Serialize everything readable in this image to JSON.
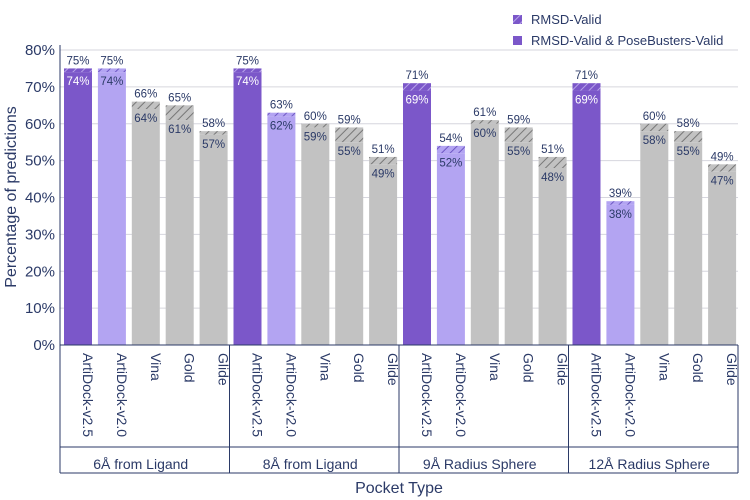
{
  "chart_data": {
    "type": "bar",
    "ylabel": "Percentage of predictions",
    "xlabel": "Pocket Type",
    "ylim": [
      0,
      80
    ],
    "yticks": [
      0,
      10,
      20,
      30,
      40,
      50,
      60,
      70,
      80
    ],
    "ytick_labels": [
      "0%",
      "10%",
      "20%",
      "30%",
      "40%",
      "50%",
      "60%",
      "70%",
      "80%"
    ],
    "legend": [
      {
        "name": "RMSD-Valid",
        "style": "hatched"
      },
      {
        "name": "RMSD-Valid & PoseBusters-Valid",
        "style": "solid"
      }
    ],
    "legend_position": "top-right",
    "methods": [
      "ArtiDock-v2.5",
      "ArtiDock-v2.0",
      "Vina",
      "Gold",
      "Glide"
    ],
    "colors": {
      "ArtiDock-v2.5": "#7b57c9",
      "ArtiDock-v2.0": "#b3a4f2",
      "Vina": "#c2c2c2",
      "Gold": "#c2c2c2",
      "Glide": "#c2c2c2"
    },
    "groups": [
      {
        "name": "6Å from Ligand",
        "rmsd_valid": [
          75,
          75,
          66,
          65,
          58
        ],
        "pb_valid": [
          74,
          74,
          64,
          61,
          57
        ],
        "rmsd_labels": [
          "75%",
          "75%",
          "66%",
          "65%",
          "58%"
        ],
        "pb_labels": [
          "74%",
          "74%",
          "64%",
          "61%",
          "57%"
        ]
      },
      {
        "name": "8Å from Ligand",
        "rmsd_valid": [
          75,
          63,
          60,
          59,
          51
        ],
        "pb_valid": [
          74,
          62,
          59,
          55,
          49
        ],
        "rmsd_labels": [
          "75%",
          "63%",
          "60%",
          "59%",
          "51%"
        ],
        "pb_labels": [
          "74%",
          "62%",
          "59%",
          "55%",
          "49%"
        ]
      },
      {
        "name": "9Å Radius Sphere",
        "rmsd_valid": [
          71,
          54,
          61,
          59,
          51
        ],
        "pb_valid": [
          69,
          52,
          60,
          55,
          48
        ],
        "rmsd_labels": [
          "71%",
          "54%",
          "61%",
          "59%",
          "51%"
        ],
        "pb_labels": [
          "69%",
          "52%",
          "60%",
          "55%",
          "48%"
        ]
      },
      {
        "name": "12Å Radius Sphere",
        "rmsd_valid": [
          71,
          39,
          60,
          58,
          49
        ],
        "pb_valid": [
          69,
          38,
          58,
          55,
          47
        ],
        "rmsd_labels": [
          "71%",
          "39%",
          "60%",
          "58%",
          "49%"
        ],
        "pb_labels": [
          "69%",
          "38%",
          "58%",
          "55%",
          "47%"
        ]
      }
    ]
  }
}
